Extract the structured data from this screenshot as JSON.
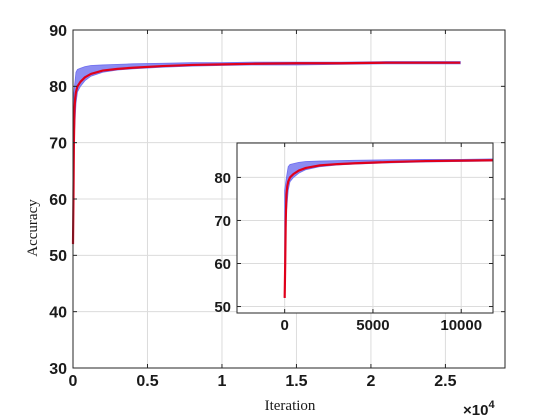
{
  "chart_data": [
    {
      "type": "line",
      "title": "",
      "xlabel": "Iteration",
      "ylabel": "Accuracy",
      "x_multiplier_label": "×10",
      "x_multiplier_exp": "4",
      "xlim": [
        0,
        29000
      ],
      "ylim": [
        30,
        90
      ],
      "x_ticks": [
        0,
        5000,
        10000,
        15000,
        20000,
        25000
      ],
      "x_tick_labels": [
        "0",
        "0.5",
        "1",
        "1.5",
        "2",
        "2.5"
      ],
      "y_ticks": [
        30,
        40,
        50,
        60,
        70,
        80,
        90
      ],
      "y_tick_labels": [
        "30",
        "40",
        "50",
        "60",
        "70",
        "80",
        "90"
      ],
      "grid": true,
      "series": [
        {
          "role": "band",
          "color": "#6666ee",
          "x": [
            0,
            100,
            200,
            300,
            500,
            800,
            1200,
            2000,
            3000,
            4000,
            6000,
            8000,
            10000,
            12000,
            15000,
            18000,
            21000,
            24000,
            26000
          ],
          "upper": [
            77,
            80,
            82.5,
            83,
            83.2,
            83.5,
            83.7,
            83.8,
            83.9,
            84,
            84.1,
            84.2,
            84.2,
            84.3,
            84.3,
            84.3,
            84.4,
            84.4,
            84.4
          ],
          "lower": [
            52,
            72,
            77,
            79,
            80,
            81,
            81.8,
            82.5,
            82.9,
            83.1,
            83.4,
            83.6,
            83.7,
            83.8,
            83.8,
            83.9,
            84,
            84,
            84
          ]
        },
        {
          "role": "mean",
          "color": "#e0001b",
          "x": [
            0,
            30,
            60,
            100,
            150,
            200,
            300,
            500,
            800,
            1200,
            2000,
            3000,
            4000,
            6000,
            8000,
            10000,
            12000,
            15000,
            18000,
            21000,
            24000,
            26000
          ],
          "y": [
            52,
            60,
            70,
            76,
            78,
            79,
            80,
            80.8,
            81.6,
            82.2,
            82.8,
            83.1,
            83.3,
            83.6,
            83.8,
            83.9,
            84,
            84.1,
            84.1,
            84.2,
            84.2,
            84.2
          ]
        }
      ]
    },
    {
      "type": "line",
      "title": "",
      "xlabel": "",
      "ylabel": "",
      "xlim": [
        -2700,
        11800
      ],
      "ylim": [
        48.5,
        88
      ],
      "x_ticks": [
        0,
        5000,
        10000
      ],
      "x_tick_labels": [
        "0",
        "5000",
        "10000"
      ],
      "y_ticks": [
        50,
        60,
        70,
        80
      ],
      "y_tick_labels": [
        "50",
        "60",
        "70",
        "80"
      ],
      "grid": true,
      "series": [
        {
          "role": "band",
          "color": "#6666ee",
          "x": [
            0,
            100,
            200,
            300,
            500,
            800,
            1200,
            2000,
            3000,
            4000,
            6000,
            8000,
            10000,
            11800
          ],
          "upper": [
            77,
            80,
            82.5,
            83,
            83.2,
            83.5,
            83.7,
            83.8,
            83.9,
            84,
            84.1,
            84.2,
            84.2,
            84.3
          ],
          "lower": [
            52,
            72,
            77,
            79,
            80,
            81,
            81.8,
            82.5,
            82.9,
            83.1,
            83.4,
            83.6,
            83.7,
            83.8
          ]
        },
        {
          "role": "mean",
          "color": "#e0001b",
          "x": [
            0,
            30,
            60,
            100,
            150,
            200,
            300,
            500,
            800,
            1200,
            2000,
            3000,
            4000,
            6000,
            8000,
            10000,
            11800
          ],
          "y": [
            52,
            60,
            70,
            76,
            78,
            79,
            80,
            80.8,
            81.6,
            82.2,
            82.8,
            83.1,
            83.3,
            83.6,
            83.8,
            83.9,
            84
          ]
        }
      ]
    }
  ]
}
